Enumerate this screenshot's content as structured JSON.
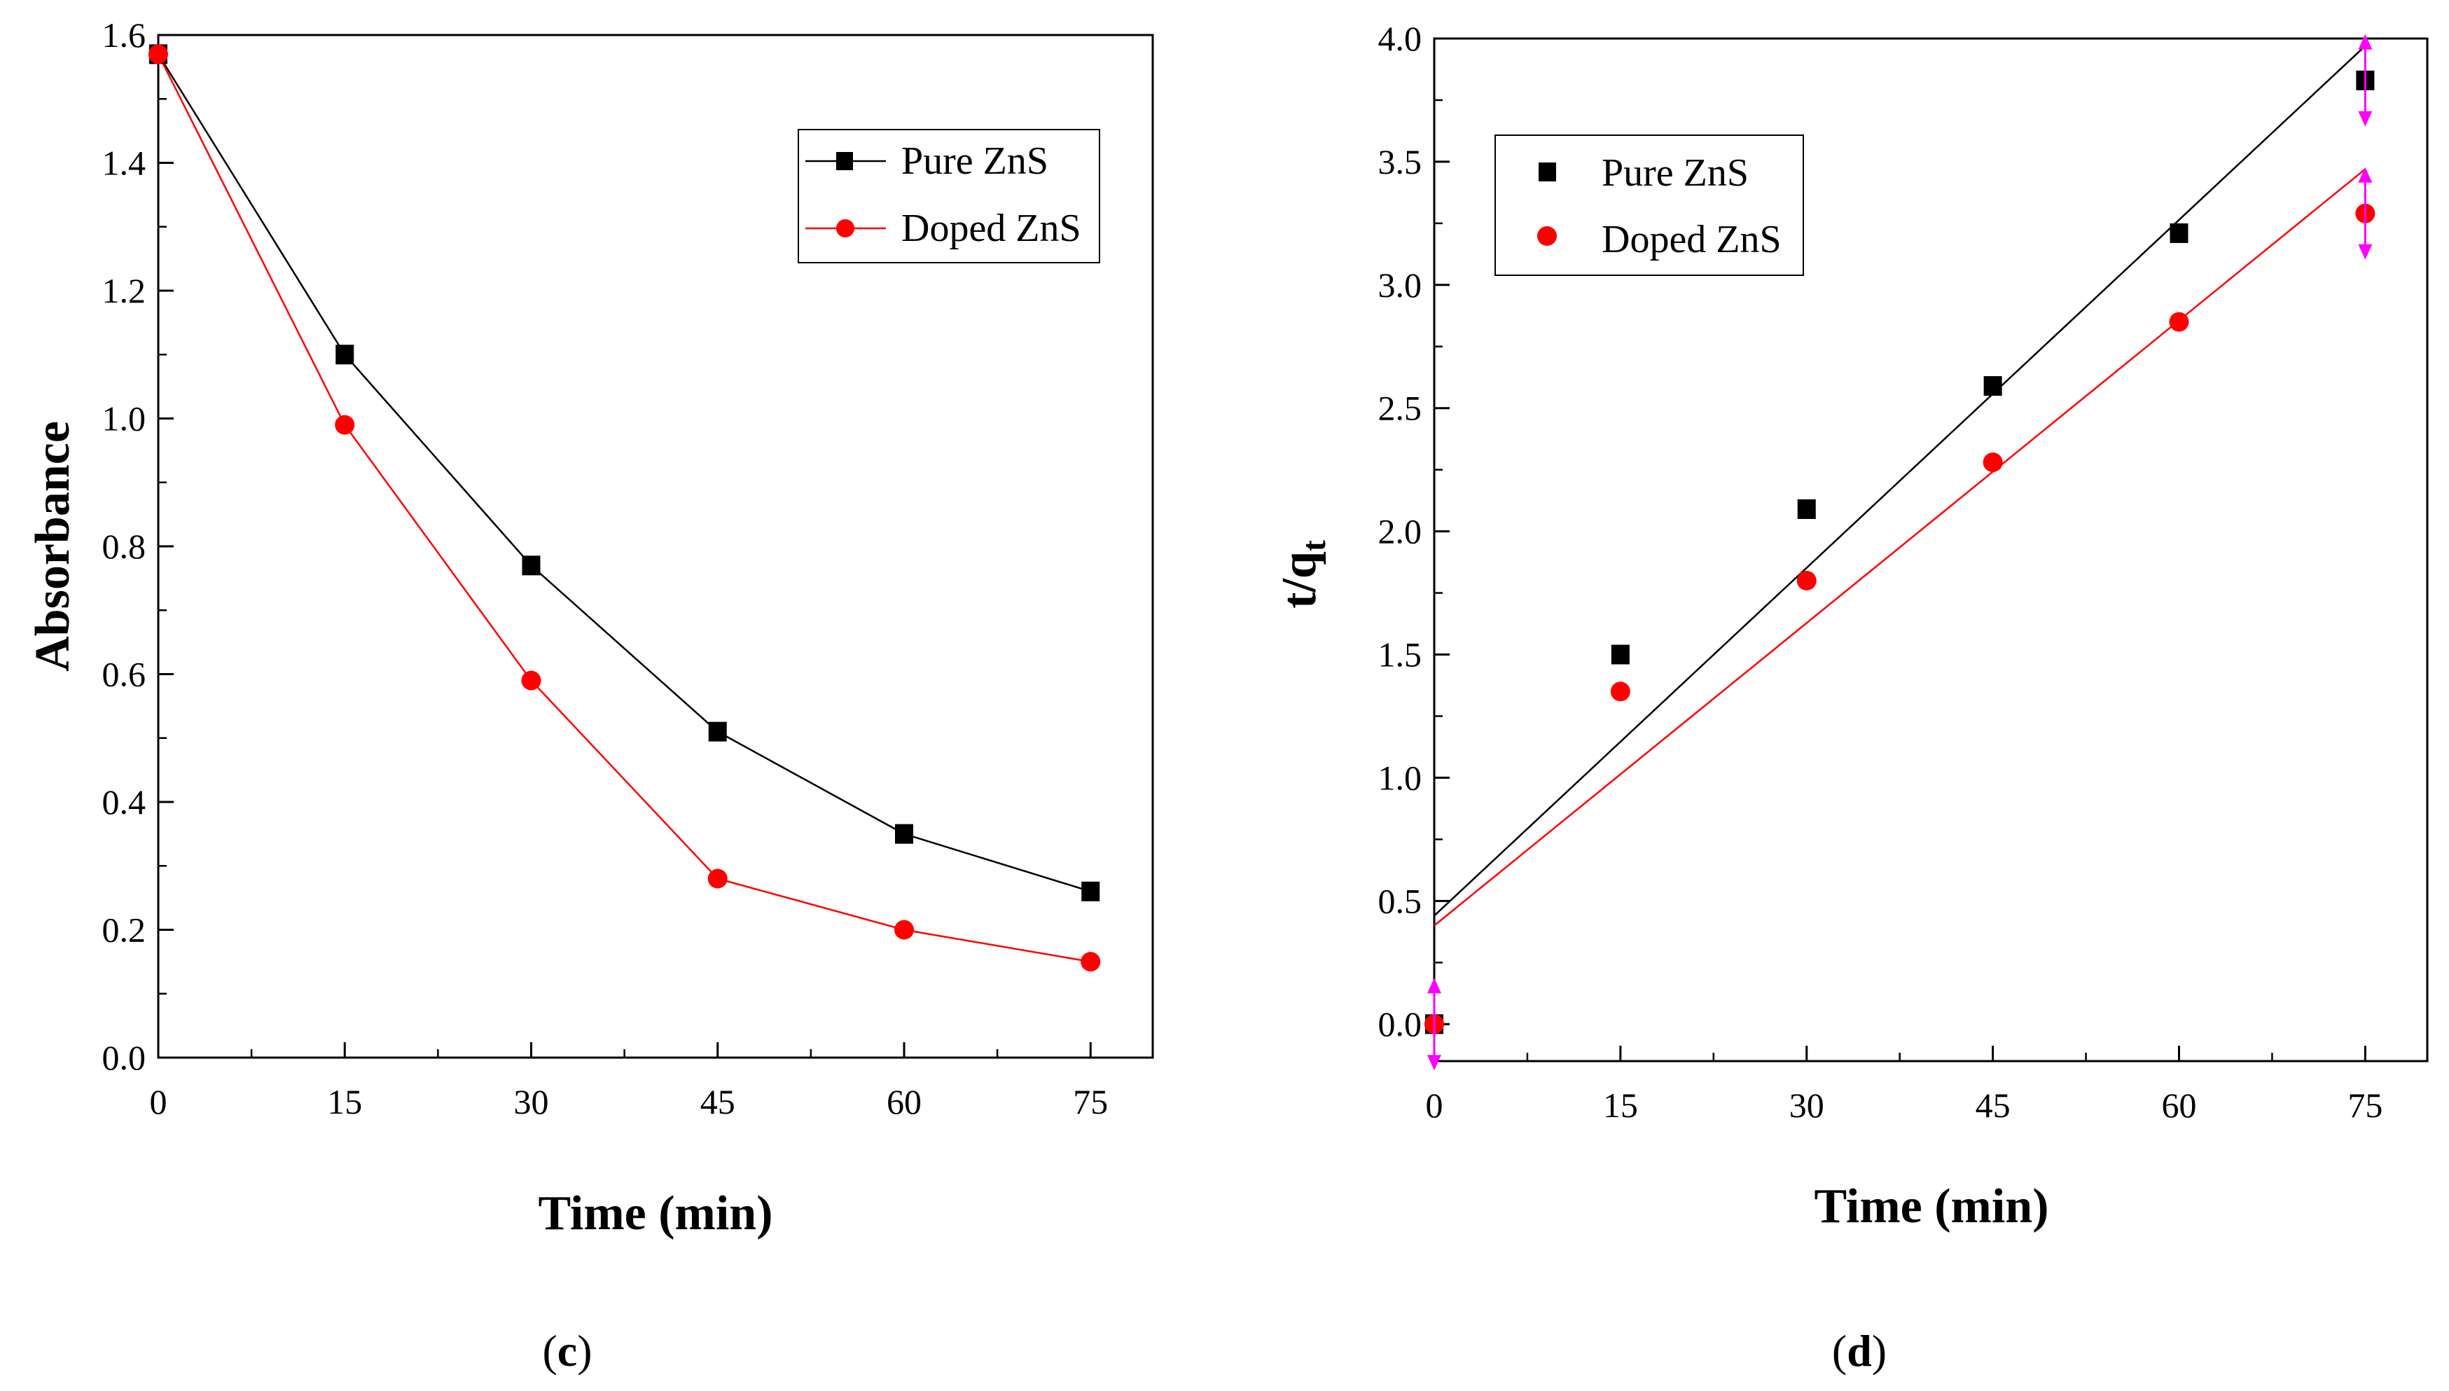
{
  "chart_data": [
    {
      "type": "line",
      "panel_label": {
        "open": "(",
        "letter": "c",
        "close": ")"
      },
      "title": "",
      "xlabel": "Time (min)",
      "ylabel": "Absorbance",
      "xlim": [
        0,
        80
      ],
      "ylim": [
        0.0,
        1.6
      ],
      "xticks": [
        0,
        15,
        30,
        45,
        60,
        75
      ],
      "xtick_labels": [
        "0",
        "15",
        "30",
        "45",
        "60",
        "75"
      ],
      "yticks": [
        0.0,
        0.2,
        0.4,
        0.6,
        0.8,
        1.0,
        1.2,
        1.4,
        1.6
      ],
      "ytick_labels": [
        "0.0",
        "0.2",
        "0.4",
        "0.6",
        "0.8",
        "1.0",
        "1.2",
        "1.4",
        "1.6"
      ],
      "grid": false,
      "legend_position": "top-right",
      "x": [
        0,
        15,
        30,
        45,
        60,
        75
      ],
      "series": [
        {
          "name": "Pure ZnS",
          "color": "#000000",
          "marker": "square",
          "values": [
            1.57,
            1.1,
            0.77,
            0.51,
            0.35,
            0.26
          ]
        },
        {
          "name": "Doped ZnS",
          "color": "#ff0000",
          "marker": "circle",
          "values": [
            1.57,
            0.99,
            0.59,
            0.28,
            0.2,
            0.15
          ]
        }
      ]
    },
    {
      "type": "scatter",
      "panel_label": {
        "open": "(",
        "letter": "d",
        "close": ")"
      },
      "title": "",
      "xlabel": "Time (min)",
      "ylabel": "t/q",
      "ylabel_subscript": "t",
      "xlim": [
        0,
        80
      ],
      "ylim": [
        -0.15,
        4.0
      ],
      "xticks": [
        0,
        15,
        30,
        45,
        60,
        75
      ],
      "xtick_labels": [
        "0",
        "15",
        "30",
        "45",
        "60",
        "75"
      ],
      "yticks": [
        0.0,
        0.5,
        1.0,
        1.5,
        2.0,
        2.5,
        3.0,
        3.5,
        4.0
      ],
      "ytick_labels": [
        "0.0",
        "0.5",
        "1.0",
        "1.5",
        "2.0",
        "2.5",
        "3.0",
        "3.5",
        "4.0"
      ],
      "grid": false,
      "legend_position": "top-left",
      "x": [
        0,
        15,
        30,
        45,
        60,
        75
      ],
      "series": [
        {
          "name": "Pure ZnS",
          "color": "#000000",
          "marker": "square",
          "values": [
            0.0,
            1.5,
            2.09,
            2.59,
            3.21,
            3.83
          ],
          "fit": {
            "x": [
              0,
              75
            ],
            "y": [
              0.44,
              3.97
            ]
          }
        },
        {
          "name": "Doped ZnS",
          "color": "#ff0000",
          "marker": "circle",
          "values": [
            0.0,
            1.35,
            1.8,
            2.28,
            2.85,
            3.29
          ],
          "fit": {
            "x": [
              0,
              75
            ],
            "y": [
              0.4,
              3.47
            ]
          }
        }
      ],
      "annotations": [
        {
          "kind": "double-arrow",
          "color": "#ff00ff",
          "x": 0,
          "y": 0.0
        },
        {
          "kind": "double-arrow",
          "color": "#ff00ff",
          "x": 75,
          "y": 3.83
        },
        {
          "kind": "double-arrow",
          "color": "#ff00ff",
          "x": 75,
          "y": 3.29
        }
      ]
    }
  ]
}
